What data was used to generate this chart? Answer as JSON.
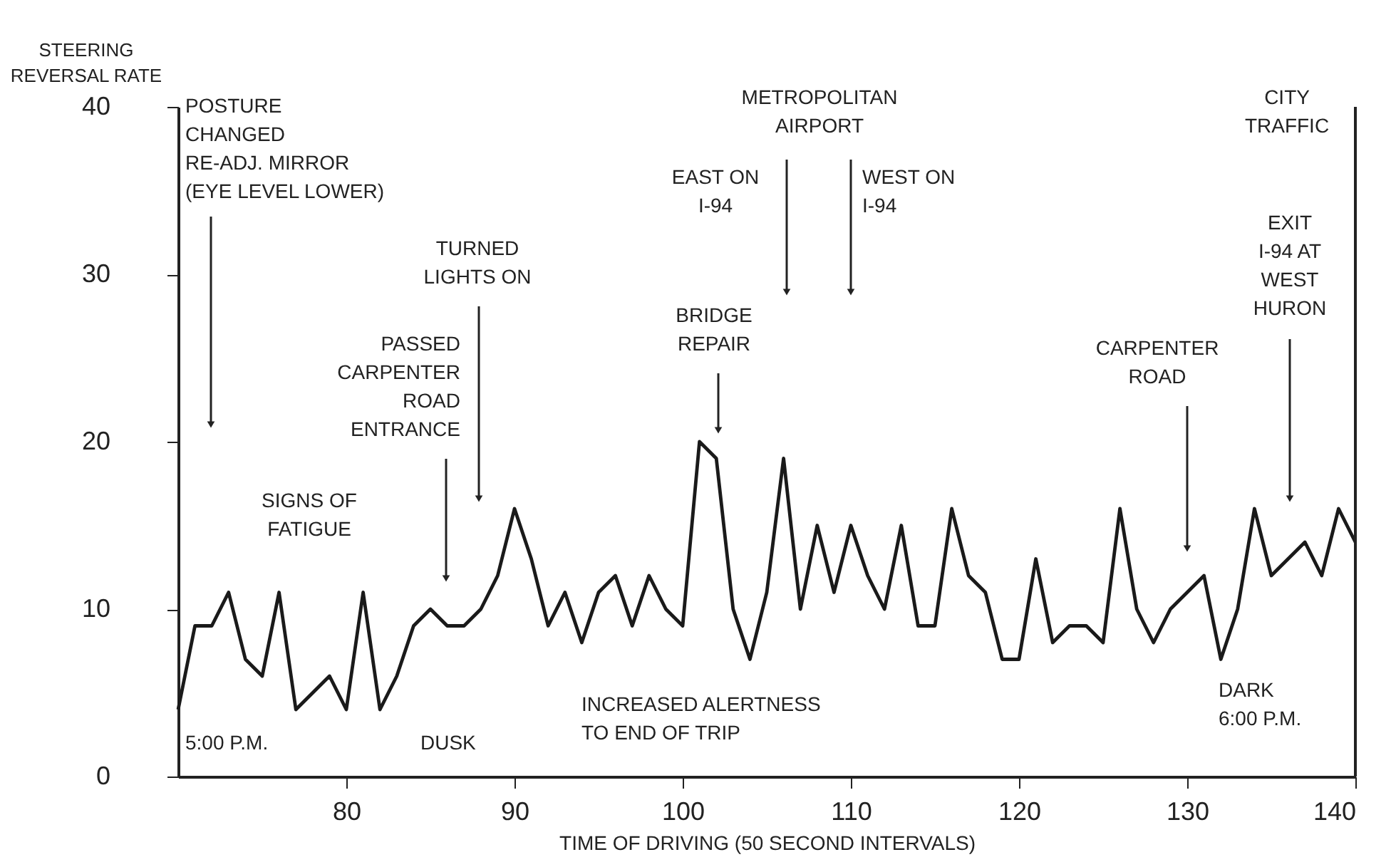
{
  "chart_data": {
    "type": "line",
    "xlabel": "TIME OF DRIVING (50 SECOND INTERVALS)",
    "ylabel": "STEERING\nREVERSAL RATE",
    "x": [
      70,
      71,
      72,
      73,
      74,
      75,
      76,
      77,
      78,
      79,
      80,
      81,
      82,
      83,
      84,
      85,
      86,
      87,
      88,
      89,
      90,
      91,
      92,
      93,
      94,
      95,
      96,
      97,
      98,
      99,
      100,
      101,
      102,
      103,
      104,
      105,
      106,
      107,
      108,
      109,
      110,
      111,
      112,
      113,
      114,
      115,
      116,
      117,
      118,
      119,
      120,
      121,
      122,
      123,
      124,
      125,
      126,
      127,
      128,
      129,
      130,
      131,
      132,
      133,
      134,
      135,
      136,
      137,
      138,
      139,
      140
    ],
    "series": [
      {
        "color": "#1a1a1a",
        "values": [
          4,
          9,
          9,
          11,
          7,
          6,
          11,
          4,
          5,
          6,
          4,
          11,
          4,
          6,
          9,
          10,
          9,
          9,
          10,
          12,
          16,
          13,
          9,
          11,
          8,
          11,
          12,
          9,
          12,
          10,
          9,
          20,
          19,
          10,
          7,
          11,
          19,
          10,
          15,
          11,
          15,
          12,
          10,
          15,
          9,
          9,
          16,
          12,
          11,
          7,
          7,
          13,
          8,
          9,
          9,
          8,
          16,
          10,
          8,
          10,
          11,
          12,
          7,
          10,
          16,
          12,
          13,
          14,
          12,
          16,
          14
        ]
      }
    ],
    "xlim": [
      70,
      140
    ],
    "xticks": [
      80,
      90,
      100,
      110,
      120,
      130,
      140
    ],
    "ylim": [
      0,
      40
    ],
    "yticks": [
      0,
      10,
      20,
      30,
      40
    ],
    "grid": false,
    "legend": false,
    "marker": "none",
    "line_style": "solid",
    "annotations": [
      "POSTURE\nCHANGED\nRE-ADJ. MIRROR\n(EYE LEVEL LOWER)",
      "TURNED\nLIGHTS ON",
      "PASSED\nCARPENTER\nROAD\nENTRANCE",
      "SIGNS OF\nFATIGUE",
      "METROPOLITAN\nAIRPORT",
      "EAST ON\nI-94",
      "WEST ON\nI-94",
      "BRIDGE\nREPAIR",
      "CITY\nTRAFFIC",
      "EXIT\nI-94 AT\nWEST\nHURON",
      "CARPENTER\nROAD",
      "INCREASED ALERTNESS\nTO END OF TRIP",
      "5:00 P.M.",
      "DUSK",
      "DARK\n6:00 P.M."
    ]
  }
}
